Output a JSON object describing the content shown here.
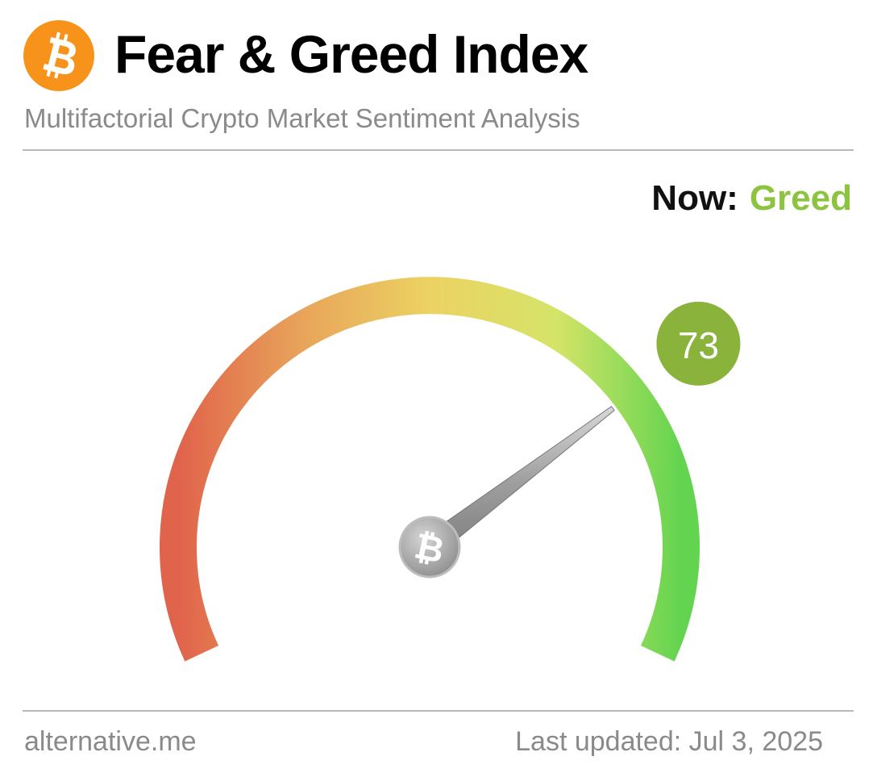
{
  "header": {
    "title": "Fear & Greed Index",
    "subtitle": "Multifactorial Crypto Market Sentiment Analysis",
    "logo_icon": "bitcoin-icon",
    "logo_color": "#f7931a"
  },
  "status": {
    "label": "Now:",
    "classification": "Greed",
    "classification_color": "#8cc43f"
  },
  "chart_data": {
    "type": "gauge",
    "value": 73,
    "value_label": "73",
    "range": [
      0,
      100
    ],
    "gradient": [
      "#e0634b",
      "#e8a55a",
      "#ecd262",
      "#d5e468",
      "#62d44f"
    ],
    "badge_color": "#8ab33c",
    "pivot_icon": "bitcoin-icon"
  },
  "footer": {
    "source": "alternative.me",
    "last_updated": "Last updated: Jul 3, 2025"
  }
}
